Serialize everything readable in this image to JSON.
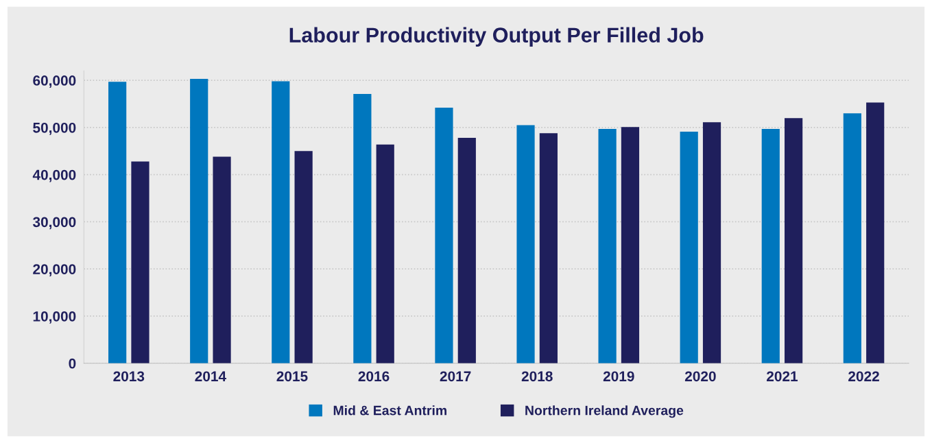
{
  "chart_data": {
    "type": "bar",
    "title": "Labour Productivity Output Per Filled Job",
    "categories": [
      "2013",
      "2014",
      "2015",
      "2016",
      "2017",
      "2018",
      "2019",
      "2020",
      "2021",
      "2022"
    ],
    "series": [
      {
        "name": "Mid & East Antrim",
        "color": "#0077be",
        "values": [
          59700,
          60300,
          59800,
          57100,
          54200,
          50500,
          49700,
          49100,
          49700,
          53000
        ]
      },
      {
        "name": "Northern Ireland Average",
        "color": "#1f1f5c",
        "values": [
          42800,
          43800,
          45000,
          46400,
          47800,
          48800,
          50100,
          51100,
          52000,
          55300
        ]
      }
    ],
    "ylim": [
      0,
      62000
    ],
    "yticks": [
      {
        "value": 0,
        "label": "0"
      },
      {
        "value": 10000,
        "label": "10,000"
      },
      {
        "value": 20000,
        "label": "20,000"
      },
      {
        "value": 30000,
        "label": "30,000"
      },
      {
        "value": 40000,
        "label": "40,000"
      },
      {
        "value": 50000,
        "label": "50,000"
      },
      {
        "value": 60000,
        "label": "60,000"
      }
    ],
    "grid": "y",
    "legend": "bottom"
  }
}
